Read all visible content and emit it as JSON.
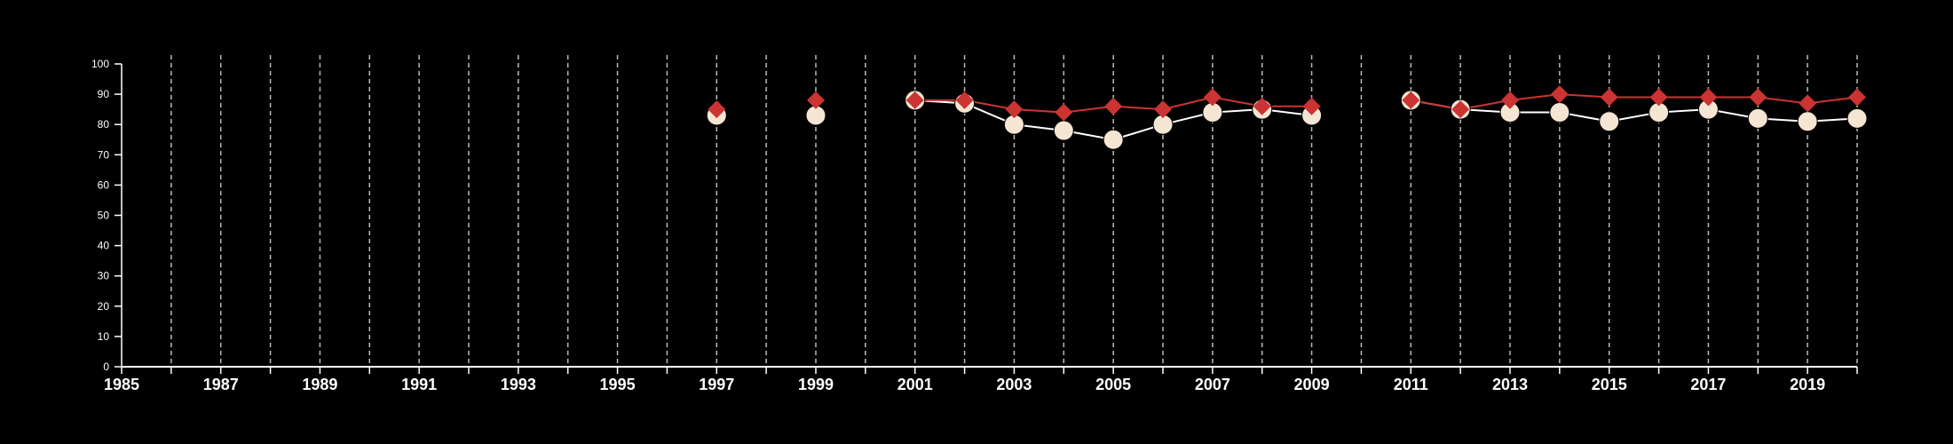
{
  "chart_data": {
    "type": "line",
    "xlim": [
      1985,
      2020
    ],
    "ylim": [
      0,
      100
    ],
    "x_ticks": [
      1985,
      1987,
      1989,
      1991,
      1993,
      1995,
      1997,
      1999,
      2001,
      2003,
      2005,
      2007,
      2009,
      2011,
      2013,
      2015,
      2017,
      2019
    ],
    "y_ticks": [
      0,
      10,
      20,
      30,
      40,
      50,
      60,
      70,
      80,
      90,
      100
    ],
    "grid": "vertical dashed lines at every year",
    "colors": {
      "background": "#000000",
      "axis": "#ffffff",
      "grid": "#bbbbbb",
      "series_light": "#f5e6d3",
      "series_light_line": "#ffffff",
      "series_red": "#cc3333"
    },
    "series": [
      {
        "marker": "circle",
        "color": "#f5e6d3",
        "segments": [
          [
            [
              1997,
              83
            ]
          ],
          [
            [
              1999,
              83
            ]
          ],
          [
            [
              2001,
              88
            ],
            [
              2002,
              87
            ],
            [
              2003,
              80
            ],
            [
              2004,
              78
            ],
            [
              2005,
              75
            ],
            [
              2006,
              80
            ],
            [
              2007,
              84
            ],
            [
              2008,
              85
            ],
            [
              2009,
              83
            ]
          ],
          [
            [
              2011,
              88
            ],
            [
              2012,
              85
            ],
            [
              2013,
              84
            ],
            [
              2014,
              84
            ],
            [
              2015,
              81
            ],
            [
              2016,
              84
            ],
            [
              2017,
              85
            ],
            [
              2018,
              82
            ],
            [
              2019,
              81
            ],
            [
              2020,
              82
            ]
          ]
        ]
      },
      {
        "marker": "diamond",
        "color": "#cc3333",
        "segments": [
          [
            [
              1997,
              85
            ]
          ],
          [
            [
              1999,
              88
            ]
          ],
          [
            [
              2001,
              88
            ],
            [
              2002,
              88
            ],
            [
              2003,
              85
            ],
            [
              2004,
              84
            ],
            [
              2005,
              86
            ],
            [
              2006,
              85
            ],
            [
              2007,
              89
            ],
            [
              2008,
              86
            ],
            [
              2009,
              86
            ]
          ],
          [
            [
              2011,
              88
            ],
            [
              2012,
              85
            ],
            [
              2013,
              88
            ],
            [
              2014,
              90
            ],
            [
              2015,
              89
            ],
            [
              2016,
              89
            ],
            [
              2017,
              89
            ],
            [
              2018,
              89
            ],
            [
              2019,
              87
            ],
            [
              2020,
              89
            ]
          ]
        ]
      }
    ]
  }
}
